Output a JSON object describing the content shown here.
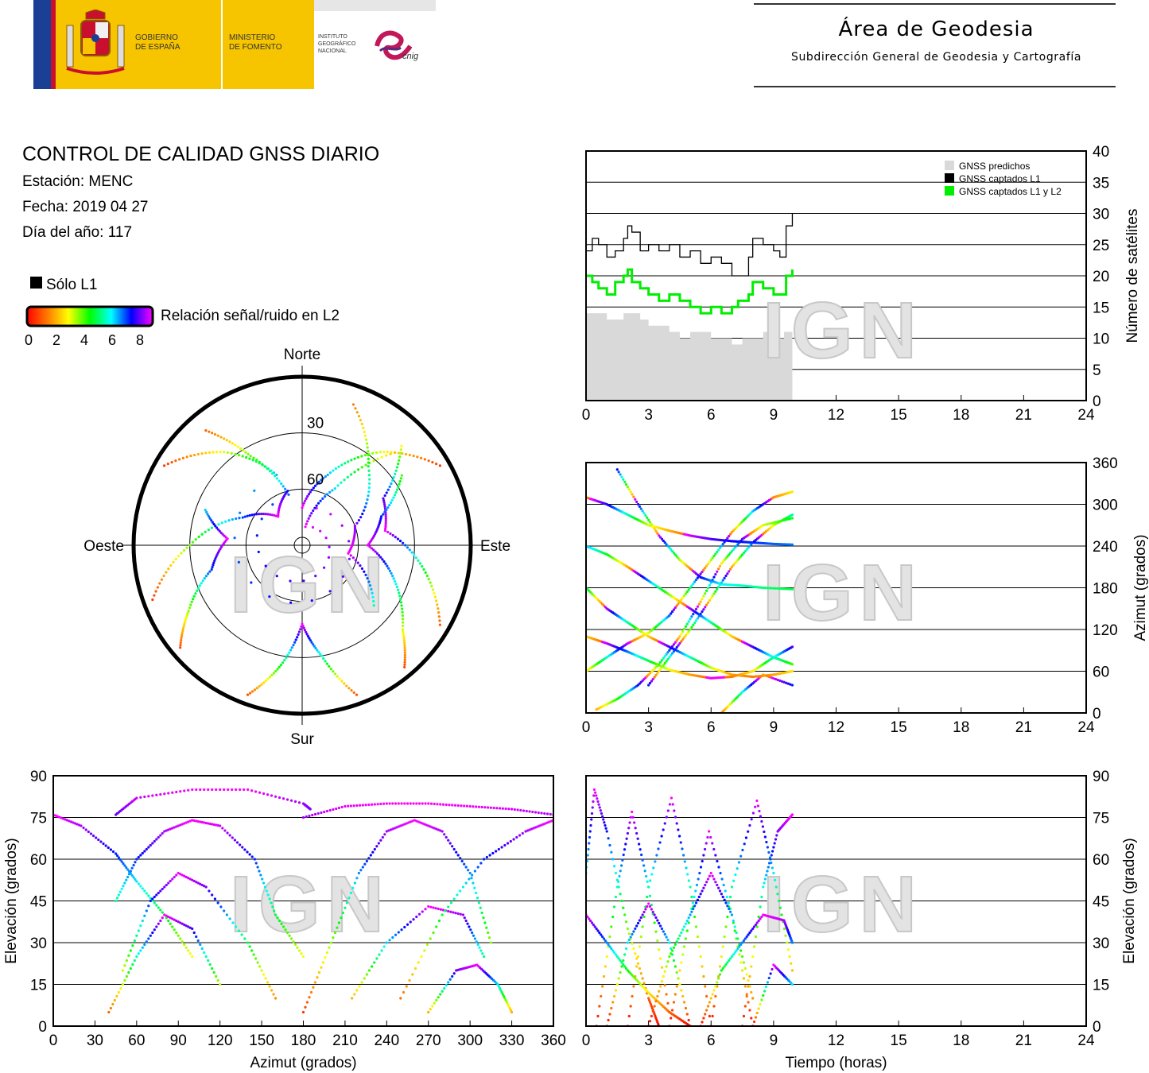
{
  "header": {
    "gov_line1": "GOBIERNO",
    "gov_line2": "DE ESPAÑA",
    "ministry_line1": "MINISTERIO",
    "ministry_line2": "DE FOMENTO",
    "ign_line1": "INSTITUTO",
    "ign_line2": "GEOGRÁFICO",
    "ign_line3": "NACIONAL",
    "cnig": "cnig",
    "area_title": "Área de Geodesia",
    "area_subtitle": "Subdirección General de Geodesia y Cartografía"
  },
  "info": {
    "title": "CONTROL DE CALIDAD GNSS DIARIO",
    "station": "Estación: MENC",
    "date": "Fecha: 2019 04 27",
    "doy": "Día del año: 117"
  },
  "legend": {
    "l1_only": "Sólo L1",
    "snr_label": "Relación señal/ruido en L2",
    "snr_ticks": [
      "0",
      "2",
      "4",
      "6",
      "8"
    ],
    "snr_colors": [
      "#ff0000",
      "#ff8000",
      "#ffff00",
      "#00ff00",
      "#00ffff",
      "#0000ff",
      "#ff00ff"
    ],
    "solo_l1_color": "#000000"
  },
  "watermark": "IGN",
  "colors": {
    "grid": "#000000",
    "predicted": "#d9d9d9",
    "l1": "#000000",
    "l1l2": "#00ee00"
  },
  "chart_data": [
    {
      "type": "area",
      "panel": "satellite-count",
      "ylabel": "Número de satélites",
      "ylim": [
        0,
        40
      ],
      "yticks": [
        "0",
        "5",
        "10",
        "15",
        "20",
        "25",
        "30",
        "35",
        "40"
      ],
      "xlim": [
        0,
        24
      ],
      "xticks": [
        "0",
        "3",
        "6",
        "9",
        "12",
        "15",
        "18",
        "21",
        "24"
      ],
      "legend_position": "top-right",
      "series": [
        {
          "name": "GNSS predichos",
          "color": "#d9d9d9",
          "x": [
            0,
            0.3,
            0.6,
            1.0,
            1.4,
            1.8,
            2.2,
            2.6,
            3.0,
            3.5,
            4.0,
            4.5,
            5.0,
            5.5,
            6.0,
            6.5,
            7.0,
            7.5,
            8.0,
            8.5,
            9.0,
            9.5,
            9.9
          ],
          "y": [
            14,
            14,
            14,
            13,
            13,
            14,
            14,
            13,
            12,
            12,
            11,
            10,
            11,
            11,
            10,
            10,
            9,
            10,
            10,
            11,
            10,
            11,
            14
          ]
        },
        {
          "name": "GNSS captados L1",
          "color": "#000000",
          "x": [
            0,
            0.3,
            0.6,
            1.0,
            1.4,
            1.8,
            2.0,
            2.2,
            2.6,
            3.0,
            3.5,
            4.0,
            4.5,
            5.0,
            5.5,
            6.0,
            6.5,
            7.0,
            7.3,
            7.8,
            8.0,
            8.5,
            9.0,
            9.3,
            9.6,
            9.9
          ],
          "y": [
            24,
            26,
            25,
            23,
            24,
            26,
            28,
            27,
            24,
            25,
            24,
            25,
            23,
            24,
            22,
            23,
            22,
            20,
            20,
            23,
            26,
            25,
            24,
            23,
            28,
            30
          ]
        },
        {
          "name": "GNSS captados L1 y L2",
          "color": "#00ee00",
          "x": [
            0,
            0.3,
            0.6,
            1.0,
            1.4,
            1.8,
            2.0,
            2.2,
            2.6,
            3.0,
            3.5,
            4.0,
            4.5,
            5.0,
            5.5,
            6.0,
            6.5,
            7.0,
            7.3,
            7.8,
            8.0,
            8.5,
            9.0,
            9.3,
            9.6,
            9.9
          ],
          "y": [
            20,
            19,
            18,
            17,
            19,
            20,
            21,
            19,
            18,
            17,
            16,
            17,
            16,
            15,
            14,
            15,
            14,
            15,
            16,
            17,
            19,
            18,
            17,
            17,
            20,
            21
          ]
        }
      ]
    },
    {
      "type": "scatter",
      "panel": "azimuth-vs-time",
      "ylabel": "Azimut (grados)",
      "ylim": [
        0,
        360
      ],
      "yticks": [
        "0",
        "60",
        "120",
        "180",
        "240",
        "300",
        "360"
      ],
      "xlim": [
        0,
        24
      ],
      "xticks": [
        "0",
        "3",
        "6",
        "9",
        "12",
        "15",
        "18",
        "21",
        "24"
      ],
      "tracks": [
        {
          "x": [
            0,
            1,
            2,
            3,
            4,
            5,
            6,
            7,
            8,
            9,
            9.9
          ],
          "y": [
            310,
            300,
            285,
            270,
            262,
            255,
            250,
            247,
            245,
            243,
            242
          ]
        },
        {
          "x": [
            0,
            1,
            2,
            3,
            4,
            5,
            6,
            7,
            8,
            9,
            9.9
          ],
          "y": [
            240,
            228,
            210,
            190,
            170,
            150,
            130,
            110,
            95,
            80,
            70
          ]
        },
        {
          "x": [
            0,
            1,
            2,
            3,
            4,
            5,
            6,
            7,
            8,
            9,
            9.9
          ],
          "y": [
            180,
            150,
            130,
            110,
            95,
            80,
            65,
            55,
            52,
            55,
            60
          ]
        },
        {
          "x": [
            0,
            1,
            2,
            3,
            4,
            5,
            6,
            7,
            8,
            9,
            9.9
          ],
          "y": [
            60,
            80,
            100,
            115,
            140,
            180,
            220,
            260,
            290,
            310,
            318
          ]
        },
        {
          "x": [
            1.5,
            2.5,
            3.5,
            4.5,
            5.5,
            6.5,
            7.5,
            8.5,
            9.9
          ],
          "y": [
            350,
            300,
            255,
            220,
            195,
            185,
            183,
            180,
            178
          ]
        },
        {
          "x": [
            0,
            1,
            2,
            3,
            4,
            5,
            6,
            7,
            8,
            9,
            9.9
          ],
          "y": [
            110,
            100,
            88,
            75,
            62,
            55,
            50,
            52,
            60,
            80,
            95
          ]
        },
        {
          "x": [
            3,
            4,
            5,
            6,
            7,
            8,
            9,
            9.9
          ],
          "y": [
            40,
            80,
            120,
            165,
            210,
            245,
            270,
            285
          ]
        },
        {
          "x": [
            0.5,
            1.5,
            2.5,
            3.5,
            4.5,
            5.5,
            6.5,
            7.5,
            8.5,
            9.9
          ],
          "y": [
            5,
            20,
            40,
            70,
            110,
            160,
            215,
            250,
            270,
            280
          ]
        },
        {
          "x": [
            6.5,
            7.5,
            8.5,
            9.9
          ],
          "y": [
            0,
            30,
            55,
            40
          ]
        }
      ]
    },
    {
      "type": "scatter",
      "panel": "sky-plot",
      "labels": {
        "north": "Norte",
        "south": "Sur",
        "east": "Este",
        "west": "Oeste"
      },
      "elevation_rings": [
        "30",
        "60"
      ],
      "tracks": [
        {
          "az": [
            300,
            320,
            340,
            0,
            20,
            40,
            60
          ],
          "el": [
            5,
            25,
            50,
            70,
            50,
            25,
            5
          ]
        },
        {
          "az": [
            320,
            330,
            345,
            10,
            30,
            45
          ],
          "el": [
            10,
            35,
            62,
            80,
            55,
            20
          ]
        },
        {
          "az": [
            250,
            270,
            295,
            320,
            345
          ],
          "el": [
            5,
            30,
            55,
            70,
            60
          ]
        },
        {
          "az": [
            200,
            190,
            180,
            170,
            160
          ],
          "el": [
            5,
            25,
            48,
            30,
            5
          ]
        },
        {
          "az": [
            120,
            100,
            80,
            60,
            45
          ],
          "el": [
            5,
            25,
            45,
            40,
            15
          ]
        },
        {
          "az": [
            230,
            240,
            255,
            275,
            290
          ],
          "el": [
            5,
            20,
            40,
            50,
            35
          ]
        },
        {
          "az": [
            140,
            130,
            110,
            90,
            70,
            55
          ],
          "el": [
            5,
            20,
            38,
            55,
            45,
            25
          ]
        },
        {
          "az": [
            20,
            40,
            70,
            100,
            130
          ],
          "el": [
            10,
            35,
            60,
            65,
            40
          ]
        }
      ]
    },
    {
      "type": "scatter",
      "panel": "elevation-vs-azimuth",
      "xlabel": "Azimut (grados)",
      "ylabel": "Elevación (grados)",
      "xlim": [
        0,
        360
      ],
      "ylim": [
        0,
        90
      ],
      "xticks": [
        "0",
        "30",
        "60",
        "90",
        "120",
        "150",
        "180",
        "210",
        "240",
        "270",
        "300",
        "330",
        "360"
      ],
      "yticks": [
        "0",
        "15",
        "30",
        "45",
        "60",
        "75",
        "90"
      ],
      "tracks": [
        {
          "x": [
            0,
            20,
            45,
            60,
            80,
            100
          ],
          "y": [
            76,
            72,
            62,
            52,
            40,
            25
          ]
        },
        {
          "x": [
            45,
            60,
            100,
            140,
            180,
            185
          ],
          "y": [
            76,
            82,
            85,
            85,
            80,
            78
          ]
        },
        {
          "x": [
            180,
            210,
            240,
            270,
            300,
            330,
            360
          ],
          "y": [
            75,
            79,
            80,
            80,
            79,
            78,
            76
          ]
        },
        {
          "x": [
            45,
            60,
            80,
            100,
            120,
            145,
            160,
            180
          ],
          "y": [
            45,
            60,
            70,
            74,
            72,
            60,
            40,
            25
          ]
        },
        {
          "x": [
            50,
            70,
            90,
            110,
            140,
            160
          ],
          "y": [
            20,
            45,
            55,
            50,
            30,
            10
          ]
        },
        {
          "x": [
            180,
            200,
            220,
            240,
            260,
            280,
            300,
            315
          ],
          "y": [
            5,
            30,
            55,
            70,
            74,
            70,
            55,
            30
          ]
        },
        {
          "x": [
            215,
            240,
            270,
            295,
            310
          ],
          "y": [
            10,
            30,
            43,
            40,
            25
          ]
        },
        {
          "x": [
            40,
            60,
            80,
            100,
            120
          ],
          "y": [
            5,
            25,
            40,
            35,
            15
          ]
        },
        {
          "x": [
            250,
            280,
            310,
            340,
            360
          ],
          "y": [
            10,
            40,
            60,
            70,
            74
          ]
        },
        {
          "x": [
            270,
            290,
            305,
            320,
            330
          ],
          "y": [
            5,
            20,
            22,
            15,
            5
          ]
        }
      ]
    },
    {
      "type": "scatter",
      "panel": "elevation-vs-time",
      "xlabel": "Tiempo (horas)",
      "ylabel": "Elevación (grados)",
      "xlim": [
        0,
        24
      ],
      "ylim": [
        0,
        90
      ],
      "xticks": [
        "0",
        "3",
        "6",
        "9",
        "12",
        "15",
        "18",
        "21",
        "24"
      ],
      "yticks": [
        "0",
        "15",
        "30",
        "45",
        "60",
        "75",
        "90"
      ],
      "tracks": [
        {
          "x": [
            0,
            0.4,
            1,
            2,
            3,
            3.5
          ],
          "y": [
            55,
            85,
            70,
            35,
            10,
            0
          ]
        },
        {
          "x": [
            0.5,
            1.5,
            2.2,
            3,
            4
          ],
          "y": [
            0,
            50,
            77,
            50,
            5
          ]
        },
        {
          "x": [
            2,
            3,
            4.1,
            5,
            6
          ],
          "y": [
            0,
            50,
            82,
            50,
            0
          ]
        },
        {
          "x": [
            4,
            5,
            5.9,
            7,
            8
          ],
          "y": [
            0,
            40,
            70,
            40,
            0
          ]
        },
        {
          "x": [
            6,
            7,
            8.2,
            9,
            9.9
          ],
          "y": [
            0,
            50,
            81,
            55,
            20
          ]
        },
        {
          "x": [
            7.5,
            8.5,
            9.2,
            9.9
          ],
          "y": [
            0,
            50,
            70,
            76
          ]
        },
        {
          "x": [
            0,
            1,
            2,
            3,
            4,
            5
          ],
          "y": [
            40,
            30,
            20,
            12,
            5,
            0
          ]
        },
        {
          "x": [
            1,
            2,
            3,
            4,
            5
          ],
          "y": [
            0,
            30,
            44,
            30,
            0
          ]
        },
        {
          "x": [
            3,
            4,
            5,
            6,
            7,
            8
          ],
          "y": [
            0,
            25,
            40,
            55,
            40,
            10
          ]
        },
        {
          "x": [
            5.5,
            6.5,
            7.5,
            8.5,
            9.5,
            9.9
          ],
          "y": [
            0,
            20,
            30,
            40,
            38,
            30
          ]
        },
        {
          "x": [
            8,
            9,
            9.9
          ],
          "y": [
            0,
            22,
            15
          ]
        }
      ]
    }
  ]
}
